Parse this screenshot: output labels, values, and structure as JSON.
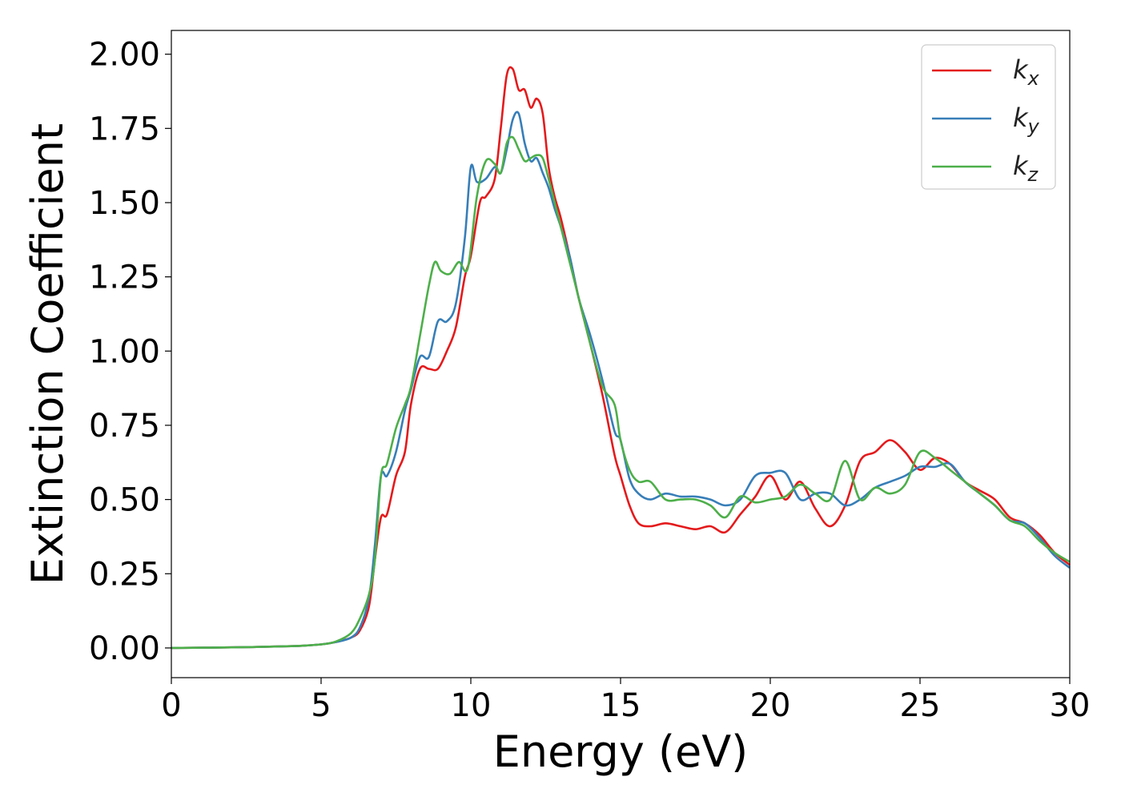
{
  "chart_data": {
    "type": "line",
    "xlabel": "Energy (eV)",
    "ylabel": "Extinction Coefficient",
    "xlim": [
      0,
      30
    ],
    "ylim": [
      -0.1,
      2.08
    ],
    "xticks": [
      "0",
      "5",
      "10",
      "15",
      "20",
      "25",
      "30"
    ],
    "yticks": [
      "0.00",
      "0.25",
      "0.50",
      "0.75",
      "1.00",
      "1.25",
      "1.50",
      "1.75",
      "2.00"
    ],
    "grid": false,
    "legend_position": "top-right",
    "series": [
      {
        "name": "k",
        "subscript": "x",
        "color": "#e41a1c",
        "x": [
          0,
          2,
          4,
          5,
          5.5,
          6,
          6.3,
          6.6,
          6.8,
          7.0,
          7.2,
          7.5,
          7.8,
          8.0,
          8.3,
          8.6,
          8.9,
          9.2,
          9.5,
          9.8,
          10.0,
          10.3,
          10.5,
          10.8,
          11.0,
          11.2,
          11.4,
          11.6,
          11.8,
          12.0,
          12.2,
          12.4,
          12.6,
          12.8,
          13.0,
          13.3,
          13.6,
          14.0,
          14.4,
          14.8,
          15.0,
          15.3,
          15.6,
          16.0,
          16.5,
          17.0,
          17.5,
          18.0,
          18.5,
          19.0,
          19.5,
          20.0,
          20.5,
          21.0,
          21.5,
          22.0,
          22.5,
          23.0,
          23.5,
          24.0,
          24.5,
          25.0,
          25.5,
          26.0,
          26.5,
          27.0,
          27.5,
          28.0,
          28.5,
          29.0,
          29.5,
          30.0
        ],
        "y": [
          0,
          0.002,
          0.006,
          0.012,
          0.02,
          0.035,
          0.06,
          0.14,
          0.3,
          0.44,
          0.45,
          0.58,
          0.66,
          0.82,
          0.94,
          0.94,
          0.94,
          1.0,
          1.08,
          1.25,
          1.32,
          1.5,
          1.52,
          1.58,
          1.75,
          1.93,
          1.95,
          1.88,
          1.88,
          1.82,
          1.85,
          1.8,
          1.62,
          1.52,
          1.45,
          1.32,
          1.18,
          1.02,
          0.85,
          0.65,
          0.58,
          0.48,
          0.42,
          0.41,
          0.42,
          0.41,
          0.4,
          0.41,
          0.39,
          0.45,
          0.51,
          0.58,
          0.5,
          0.56,
          0.47,
          0.41,
          0.48,
          0.63,
          0.66,
          0.7,
          0.66,
          0.6,
          0.64,
          0.62,
          0.56,
          0.53,
          0.5,
          0.44,
          0.42,
          0.38,
          0.32,
          0.28
        ]
      },
      {
        "name": "k",
        "subscript": "y",
        "color": "#377eb8",
        "x": [
          0,
          2,
          4,
          5,
          5.5,
          6,
          6.3,
          6.6,
          6.8,
          7.0,
          7.2,
          7.5,
          7.8,
          8.0,
          8.3,
          8.6,
          8.9,
          9.2,
          9.5,
          9.8,
          10.0,
          10.2,
          10.5,
          10.8,
          11.0,
          11.2,
          11.4,
          11.6,
          11.8,
          12.0,
          12.2,
          12.4,
          12.6,
          12.8,
          13.0,
          13.3,
          13.6,
          14.0,
          14.4,
          14.8,
          15.0,
          15.3,
          15.6,
          16.0,
          16.5,
          17.0,
          17.5,
          18.0,
          18.5,
          19.0,
          19.5,
          20.0,
          20.5,
          21.0,
          21.5,
          22.0,
          22.5,
          23.0,
          23.5,
          24.0,
          24.5,
          25.0,
          25.5,
          26.0,
          26.5,
          27.0,
          27.5,
          28.0,
          28.5,
          29.0,
          29.5,
          30.0
        ],
        "y": [
          0,
          0.002,
          0.006,
          0.012,
          0.02,
          0.035,
          0.07,
          0.17,
          0.35,
          0.58,
          0.58,
          0.66,
          0.8,
          0.87,
          0.98,
          0.98,
          1.1,
          1.1,
          1.16,
          1.38,
          1.62,
          1.57,
          1.58,
          1.62,
          1.6,
          1.68,
          1.78,
          1.8,
          1.7,
          1.64,
          1.65,
          1.6,
          1.55,
          1.48,
          1.42,
          1.32,
          1.18,
          1.05,
          0.9,
          0.73,
          0.7,
          0.57,
          0.52,
          0.5,
          0.52,
          0.51,
          0.51,
          0.5,
          0.48,
          0.5,
          0.58,
          0.59,
          0.59,
          0.5,
          0.52,
          0.52,
          0.48,
          0.5,
          0.54,
          0.56,
          0.58,
          0.61,
          0.61,
          0.62,
          0.56,
          0.52,
          0.48,
          0.43,
          0.42,
          0.37,
          0.31,
          0.27
        ]
      },
      {
        "name": "k",
        "subscript": "z",
        "color": "#4daf4a",
        "x": [
          0,
          2,
          4,
          5,
          5.5,
          6,
          6.3,
          6.6,
          6.8,
          7.0,
          7.2,
          7.5,
          7.8,
          8.0,
          8.3,
          8.6,
          8.8,
          9.0,
          9.3,
          9.6,
          9.9,
          10.2,
          10.5,
          10.8,
          11.0,
          11.2,
          11.4,
          11.6,
          11.8,
          12.0,
          12.2,
          12.4,
          12.6,
          12.8,
          13.0,
          13.3,
          13.6,
          14.0,
          14.4,
          14.8,
          15.0,
          15.3,
          15.6,
          16.0,
          16.5,
          17.0,
          17.5,
          18.0,
          18.5,
          19.0,
          19.5,
          20.0,
          20.5,
          21.0,
          21.5,
          22.0,
          22.5,
          23.0,
          23.5,
          24.0,
          24.5,
          25.0,
          25.5,
          26.0,
          26.5,
          27.0,
          27.5,
          28.0,
          28.5,
          29.0,
          29.5,
          30.0
        ],
        "y": [
          0,
          0.002,
          0.006,
          0.012,
          0.022,
          0.05,
          0.1,
          0.18,
          0.3,
          0.58,
          0.62,
          0.74,
          0.82,
          0.88,
          1.05,
          1.22,
          1.3,
          1.27,
          1.26,
          1.3,
          1.28,
          1.52,
          1.64,
          1.63,
          1.6,
          1.7,
          1.72,
          1.68,
          1.64,
          1.65,
          1.66,
          1.65,
          1.58,
          1.5,
          1.42,
          1.3,
          1.18,
          1.02,
          0.88,
          0.82,
          0.7,
          0.6,
          0.56,
          0.56,
          0.5,
          0.5,
          0.5,
          0.48,
          0.44,
          0.51,
          0.49,
          0.5,
          0.51,
          0.55,
          0.52,
          0.5,
          0.63,
          0.5,
          0.54,
          0.52,
          0.55,
          0.66,
          0.64,
          0.6,
          0.56,
          0.52,
          0.48,
          0.43,
          0.41,
          0.36,
          0.32,
          0.29
        ]
      }
    ]
  }
}
